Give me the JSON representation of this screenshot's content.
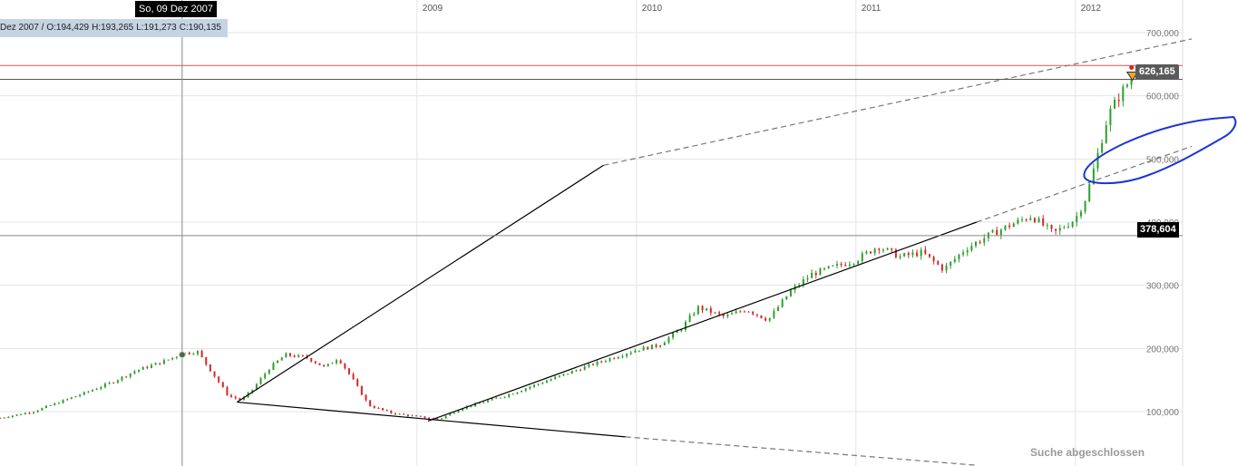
{
  "cursor": {
    "date_label": "So, 09 Dez 2007",
    "ohlc": {
      "date": "Dez 2007 /",
      "open": "O:194,429",
      "high": "H:193,265",
      "low": "L:191,273",
      "close": "C:190,135"
    },
    "price_label": "378,604"
  },
  "last_price_label": "626,165",
  "status_text": "Suche abgeschlossen",
  "colors": {
    "up": "#2ca02c",
    "down": "#d62728",
    "grid": "#e4e4e4",
    "trendline": "#000000",
    "annotation": "#1c35d4",
    "horizontal_line": "#e05050"
  },
  "chart_data": {
    "type": "candlestick",
    "x_ticks": [
      "2009",
      "2010",
      "2011",
      "2012"
    ],
    "y_ticks": [
      {
        "value": 100000,
        "label": "100,000"
      },
      {
        "value": 200000,
        "label": "200,000"
      },
      {
        "value": 300000,
        "label": "300,000"
      },
      {
        "value": 400000,
        "label": "400,000"
      },
      {
        "value": 500000,
        "label": "500,000"
      },
      {
        "value": 600000,
        "label": "600,000"
      },
      {
        "value": 700000,
        "label": "700,000"
      }
    ],
    "x_range": [
      2007.1,
      2012.5
    ],
    "ylim": [
      20000,
      740000
    ],
    "grid": true,
    "last_price": 626165,
    "resistance_level": 648000,
    "cursor": {
      "x": 2007.93,
      "y": 378604
    },
    "highlight_point": {
      "x": 2007.93,
      "y": 190135
    },
    "price_path": [
      [
        2007.1,
        90000
      ],
      [
        2007.25,
        100000
      ],
      [
        2007.45,
        125000
      ],
      [
        2007.6,
        145000
      ],
      [
        2007.72,
        165000
      ],
      [
        2007.85,
        180000
      ],
      [
        2007.93,
        192000
      ],
      [
        2008.0,
        195000
      ],
      [
        2008.08,
        155000
      ],
      [
        2008.14,
        125000
      ],
      [
        2008.2,
        118000
      ],
      [
        2008.25,
        135000
      ],
      [
        2008.33,
        170000
      ],
      [
        2008.4,
        190000
      ],
      [
        2008.5,
        185000
      ],
      [
        2008.58,
        170000
      ],
      [
        2008.64,
        185000
      ],
      [
        2008.7,
        155000
      ],
      [
        2008.78,
        110000
      ],
      [
        2008.88,
        98000
      ],
      [
        2009.0,
        92000
      ],
      [
        2009.1,
        88000
      ],
      [
        2009.2,
        105000
      ],
      [
        2009.4,
        125000
      ],
      [
        2009.6,
        150000
      ],
      [
        2009.8,
        175000
      ],
      [
        2010.0,
        198000
      ],
      [
        2010.1,
        205000
      ],
      [
        2010.2,
        230000
      ],
      [
        2010.28,
        265000
      ],
      [
        2010.4,
        250000
      ],
      [
        2010.5,
        262000
      ],
      [
        2010.6,
        245000
      ],
      [
        2010.7,
        290000
      ],
      [
        2010.8,
        318000
      ],
      [
        2011.0,
        340000
      ],
      [
        2011.1,
        362000
      ],
      [
        2011.2,
        345000
      ],
      [
        2011.3,
        352000
      ],
      [
        2011.4,
        325000
      ],
      [
        2011.5,
        358000
      ],
      [
        2011.6,
        378000
      ],
      [
        2011.7,
        395000
      ],
      [
        2011.8,
        410000
      ],
      [
        2011.9,
        382000
      ],
      [
        2012.0,
        405000
      ],
      [
        2012.05,
        440000
      ],
      [
        2012.1,
        505000
      ],
      [
        2012.15,
        570000
      ],
      [
        2012.2,
        600000
      ],
      [
        2012.26,
        630000
      ]
    ],
    "trendlines": [
      {
        "style": "solid",
        "from": [
          2008.18,
          115000
        ],
        "to": [
          2009.85,
          490000
        ]
      },
      {
        "style": "dashed",
        "from": [
          2009.85,
          490000
        ],
        "to": [
          2012.53,
          690000
        ]
      },
      {
        "style": "solid",
        "from": [
          2008.18,
          115000
        ],
        "to": [
          2009.95,
          60000
        ]
      },
      {
        "style": "dashed",
        "from": [
          2009.95,
          60000
        ],
        "to": [
          2011.55,
          15000
        ]
      },
      {
        "style": "solid",
        "from": [
          2009.05,
          85000
        ],
        "to": [
          2011.55,
          400000
        ]
      },
      {
        "style": "dashed",
        "from": [
          2011.55,
          400000
        ],
        "to": [
          2012.53,
          520000
        ]
      }
    ]
  }
}
